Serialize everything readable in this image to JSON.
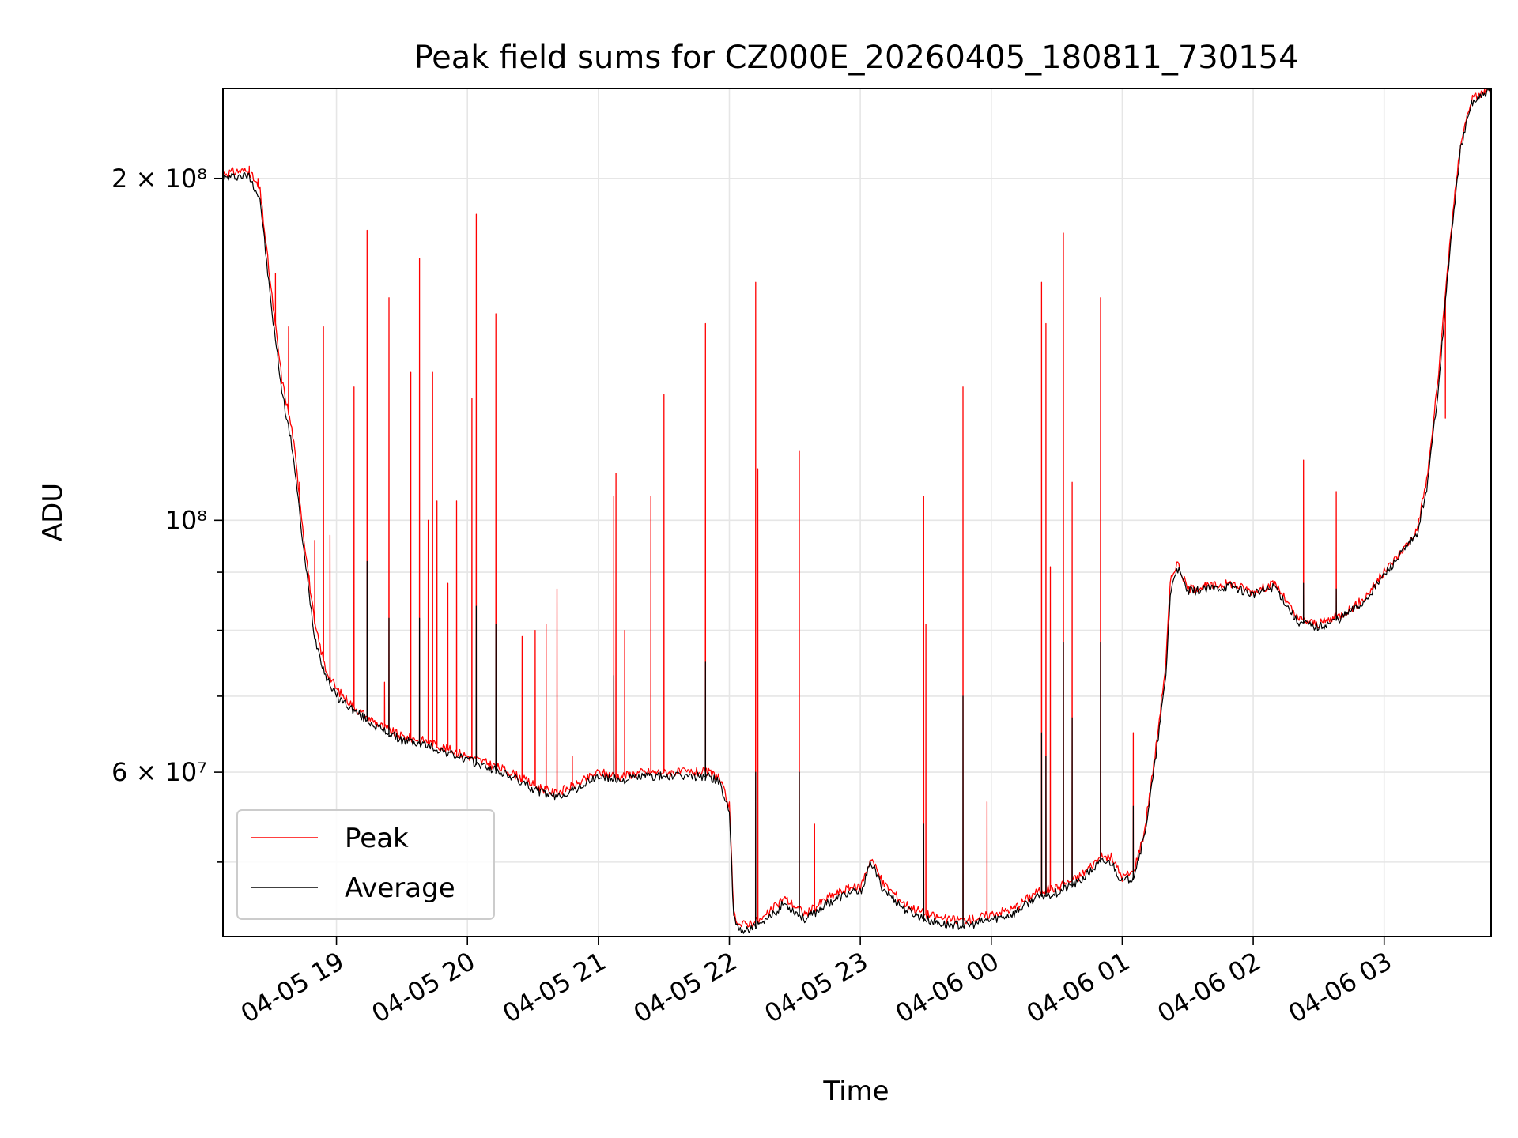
{
  "chart_data": {
    "type": "line",
    "title": "Peak field sums for CZ000E_20260405_180811_730154",
    "xlabel": "Time",
    "ylabel": "ADU",
    "yscale": "log",
    "xlim": [
      "2026-04-05 18:08",
      "2026-04-06 03:49"
    ],
    "ylim": [
      43000000,
      240000000
    ],
    "x_ticks": [
      "04-05 19",
      "04-05 20",
      "04-05 21",
      "04-05 22",
      "04-05 23",
      "04-06 00",
      "04-06 01",
      "04-06 02",
      "04-06 03"
    ],
    "y_ticks": [
      {
        "value": 200000000,
        "label": "2 × 10⁸"
      },
      {
        "value": 100000000,
        "label": "10⁸"
      },
      {
        "value": 60000000,
        "label": "6 × 10⁷"
      }
    ],
    "grid": true,
    "legend_position": "lower-left",
    "series": [
      {
        "name": "Peak",
        "color": "#ff0000",
        "baseline": [
          [
            "18:08",
            202000000
          ],
          [
            "18:15",
            203000000
          ],
          [
            "18:20",
            203000000
          ],
          [
            "18:25",
            195000000
          ],
          [
            "18:30",
            160000000
          ],
          [
            "18:35",
            133000000
          ],
          [
            "18:40",
            119000000
          ],
          [
            "18:45",
            97000000
          ],
          [
            "18:50",
            81000000
          ],
          [
            "18:55",
            74000000
          ],
          [
            "19:00",
            71000000
          ],
          [
            "19:10",
            68000000
          ],
          [
            "19:20",
            66000000
          ],
          [
            "19:30",
            64500000
          ],
          [
            "19:40",
            64000000
          ],
          [
            "19:50",
            63000000
          ],
          [
            "20:00",
            62000000
          ],
          [
            "20:10",
            61000000
          ],
          [
            "20:20",
            60000000
          ],
          [
            "20:30",
            58500000
          ],
          [
            "20:40",
            57500000
          ],
          [
            "20:50",
            58500000
          ],
          [
            "21:00",
            60000000
          ],
          [
            "21:10",
            59500000
          ],
          [
            "21:20",
            60000000
          ],
          [
            "21:30",
            60000000
          ],
          [
            "21:40",
            60000000
          ],
          [
            "21:50",
            60000000
          ],
          [
            "21:55",
            59500000
          ],
          [
            "22:00",
            56000000
          ],
          [
            "22:02",
            45000000
          ],
          [
            "22:05",
            44000000
          ],
          [
            "22:15",
            44500000
          ],
          [
            "22:25",
            46500000
          ],
          [
            "22:35",
            45000000
          ],
          [
            "22:45",
            46500000
          ],
          [
            "22:55",
            47500000
          ],
          [
            "23:00",
            47500000
          ],
          [
            "23:05",
            50500000
          ],
          [
            "23:10",
            48000000
          ],
          [
            "23:20",
            46000000
          ],
          [
            "23:30",
            45000000
          ],
          [
            "23:40",
            44500000
          ],
          [
            "23:50",
            44500000
          ],
          [
            "00:00",
            45000000
          ],
          [
            "00:10",
            45500000
          ],
          [
            "00:20",
            47000000
          ],
          [
            "00:30",
            47500000
          ],
          [
            "00:40",
            48500000
          ],
          [
            "00:50",
            50500000
          ],
          [
            "00:55",
            50500000
          ],
          [
            "01:00",
            48500000
          ],
          [
            "01:05",
            49000000
          ],
          [
            "01:10",
            53000000
          ],
          [
            "01:15",
            62000000
          ],
          [
            "01:20",
            75000000
          ],
          [
            "01:22",
            88000000
          ],
          [
            "01:25",
            92000000
          ],
          [
            "01:30",
            87000000
          ],
          [
            "01:40",
            87500000
          ],
          [
            "01:50",
            88000000
          ],
          [
            "02:00",
            86500000
          ],
          [
            "02:10",
            88000000
          ],
          [
            "02:20",
            82000000
          ],
          [
            "02:30",
            81000000
          ],
          [
            "02:40",
            82500000
          ],
          [
            "02:50",
            85000000
          ],
          [
            "03:00",
            90000000
          ],
          [
            "03:10",
            95000000
          ],
          [
            "03:15",
            98000000
          ],
          [
            "03:20",
            110000000
          ],
          [
            "03:25",
            135000000
          ],
          [
            "03:30",
            175000000
          ],
          [
            "03:35",
            215000000
          ],
          [
            "03:40",
            235000000
          ],
          [
            "03:49",
            240000000
          ]
        ],
        "spikes": [
          [
            "18:20",
            205000000
          ],
          [
            "18:24",
            200000000
          ],
          [
            "18:32",
            165000000
          ],
          [
            "18:38",
            148000000
          ],
          [
            "18:43",
            108000000
          ],
          [
            "18:47",
            88000000
          ],
          [
            "18:50",
            96000000
          ],
          [
            "18:54",
            148000000
          ],
          [
            "18:57",
            97000000
          ],
          [
            "19:08",
            131000000
          ],
          [
            "19:14",
            180000000
          ],
          [
            "19:22",
            72000000
          ],
          [
            "19:24",
            157000000
          ],
          [
            "19:34",
            135000000
          ],
          [
            "19:38",
            170000000
          ],
          [
            "19:42",
            100000000
          ],
          [
            "19:44",
            135000000
          ],
          [
            "19:46",
            104000000
          ],
          [
            "19:51",
            88000000
          ],
          [
            "19:55",
            104000000
          ],
          [
            "20:02",
            128000000
          ],
          [
            "20:04",
            186000000
          ],
          [
            "20:13",
            152000000
          ],
          [
            "20:25",
            79000000
          ],
          [
            "20:31",
            80000000
          ],
          [
            "20:36",
            81000000
          ],
          [
            "20:41",
            87000000
          ],
          [
            "20:48",
            62000000
          ],
          [
            "21:07",
            105000000
          ],
          [
            "21:08",
            110000000
          ],
          [
            "21:12",
            80000000
          ],
          [
            "21:24",
            105000000
          ],
          [
            "21:30",
            129000000
          ],
          [
            "21:49",
            149000000
          ],
          [
            "22:12",
            162000000
          ],
          [
            "22:13",
            111000000
          ],
          [
            "22:32",
            115000000
          ],
          [
            "22:39",
            54000000
          ],
          [
            "23:29",
            105000000
          ],
          [
            "23:30",
            81000000
          ],
          [
            "23:47",
            131000000
          ],
          [
            "23:58",
            56500000
          ],
          [
            "00:23",
            162000000
          ],
          [
            "00:25",
            149000000
          ],
          [
            "00:27",
            91000000
          ],
          [
            "00:33",
            179000000
          ],
          [
            "00:37",
            108000000
          ],
          [
            "00:50",
            157000000
          ],
          [
            "01:05",
            65000000
          ],
          [
            "02:23",
            113000000
          ],
          [
            "02:38",
            106000000
          ],
          [
            "03:28",
            123000000
          ],
          [
            "03:33",
            200000000
          ]
        ]
      },
      {
        "name": "Average",
        "color": "#000000",
        "baseline": [
          [
            "18:08",
            200000000
          ],
          [
            "18:15",
            201000000
          ],
          [
            "18:20",
            201000000
          ],
          [
            "18:25",
            192000000
          ],
          [
            "18:30",
            155000000
          ],
          [
            "18:35",
            130000000
          ],
          [
            "18:40",
            115000000
          ],
          [
            "18:45",
            94000000
          ],
          [
            "18:50",
            79000000
          ],
          [
            "18:55",
            73000000
          ],
          [
            "19:00",
            70000000
          ],
          [
            "19:10",
            67500000
          ],
          [
            "19:20",
            65500000
          ],
          [
            "19:30",
            64000000
          ],
          [
            "19:40",
            63500000
          ],
          [
            "19:50",
            62500000
          ],
          [
            "20:00",
            61500000
          ],
          [
            "20:10",
            60500000
          ],
          [
            "20:20",
            59500000
          ],
          [
            "20:30",
            58000000
          ],
          [
            "20:40",
            57000000
          ],
          [
            "20:50",
            58000000
          ],
          [
            "21:00",
            59500000
          ],
          [
            "21:10",
            59000000
          ],
          [
            "21:20",
            59500000
          ],
          [
            "21:30",
            59500000
          ],
          [
            "21:40",
            59500000
          ],
          [
            "21:50",
            59500000
          ],
          [
            "21:55",
            59000000
          ],
          [
            "22:00",
            55500000
          ],
          [
            "22:02",
            44500000
          ],
          [
            "22:05",
            43500000
          ],
          [
            "22:15",
            44000000
          ],
          [
            "22:25",
            46000000
          ],
          [
            "22:35",
            44500000
          ],
          [
            "22:45",
            46000000
          ],
          [
            "22:55",
            47000000
          ],
          [
            "23:00",
            47000000
          ],
          [
            "23:05",
            50000000
          ],
          [
            "23:10",
            47500000
          ],
          [
            "23:20",
            45500000
          ],
          [
            "23:30",
            44500000
          ],
          [
            "23:40",
            44000000
          ],
          [
            "23:50",
            44000000
          ],
          [
            "00:00",
            44500000
          ],
          [
            "00:10",
            45000000
          ],
          [
            "00:20",
            46500000
          ],
          [
            "00:30",
            47000000
          ],
          [
            "00:40",
            48000000
          ],
          [
            "00:50",
            50000000
          ],
          [
            "00:55",
            50000000
          ],
          [
            "01:00",
            48000000
          ],
          [
            "01:05",
            48500000
          ],
          [
            "01:10",
            52500000
          ],
          [
            "01:15",
            61000000
          ],
          [
            "01:20",
            73000000
          ],
          [
            "01:22",
            86000000
          ],
          [
            "01:25",
            91000000
          ],
          [
            "01:30",
            86500000
          ],
          [
            "01:40",
            87000000
          ],
          [
            "01:50",
            87500000
          ],
          [
            "02:00",
            86000000
          ],
          [
            "02:10",
            87500000
          ],
          [
            "02:20",
            81500000
          ],
          [
            "02:30",
            80500000
          ],
          [
            "02:40",
            82000000
          ],
          [
            "02:50",
            84500000
          ],
          [
            "03:00",
            89500000
          ],
          [
            "03:10",
            94500000
          ],
          [
            "03:15",
            97000000
          ],
          [
            "03:20",
            108000000
          ],
          [
            "03:25",
            132000000
          ],
          [
            "03:30",
            172000000
          ],
          [
            "03:35",
            212000000
          ],
          [
            "03:40",
            233000000
          ],
          [
            "03:49",
            239000000
          ]
        ],
        "spikes": [
          [
            "19:14",
            92000000
          ],
          [
            "19:24",
            82000000
          ],
          [
            "19:38",
            82000000
          ],
          [
            "20:04",
            84000000
          ],
          [
            "20:13",
            81000000
          ],
          [
            "21:07",
            73000000
          ],
          [
            "21:49",
            75000000
          ],
          [
            "22:12",
            60000000
          ],
          [
            "22:32",
            60000000
          ],
          [
            "23:29",
            54000000
          ],
          [
            "23:47",
            70000000
          ],
          [
            "00:23",
            65000000
          ],
          [
            "00:25",
            62000000
          ],
          [
            "00:33",
            78000000
          ],
          [
            "00:37",
            67000000
          ],
          [
            "00:50",
            78000000
          ],
          [
            "01:05",
            56000000
          ],
          [
            "02:23",
            88000000
          ],
          [
            "02:38",
            87000000
          ]
        ]
      }
    ]
  }
}
